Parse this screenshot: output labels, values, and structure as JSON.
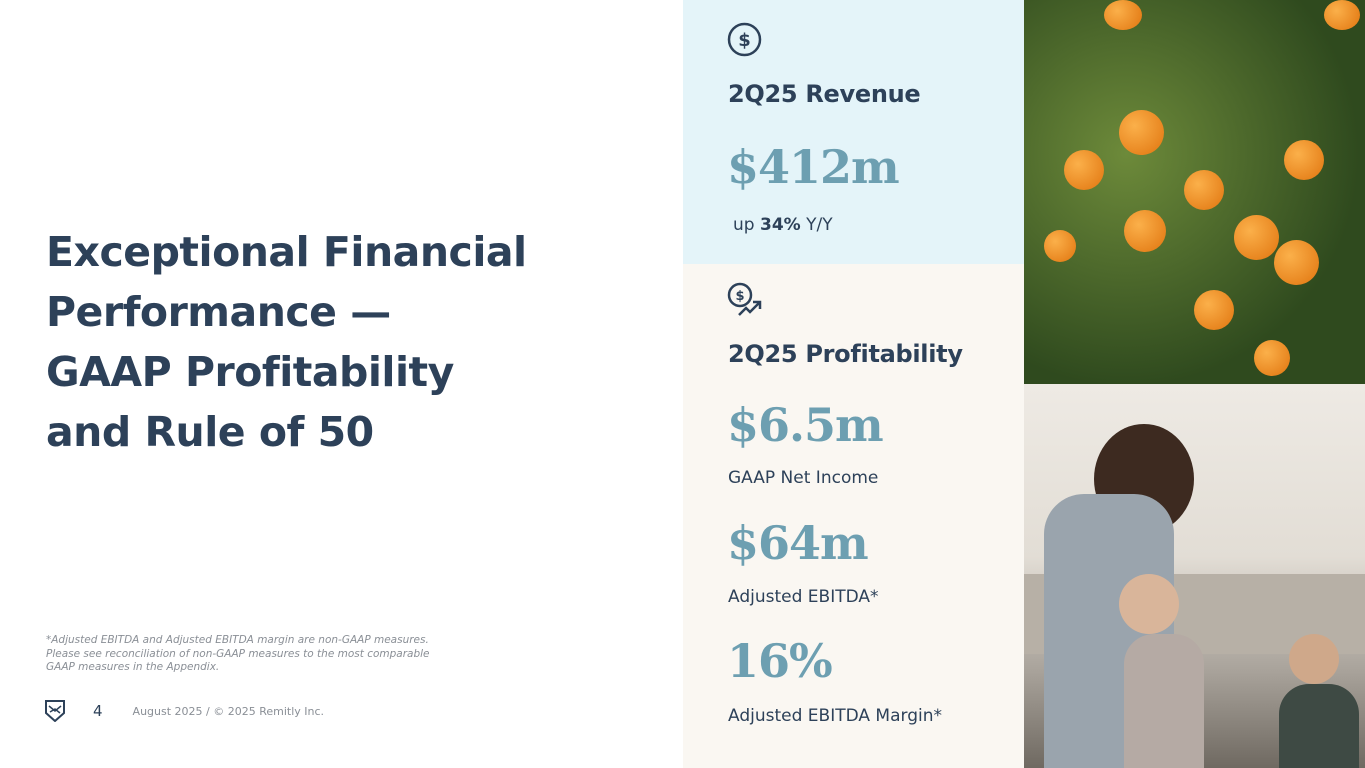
{
  "slide": {
    "title_lines": [
      "Exceptional Financial",
      "Performance —",
      "GAAP Profitability",
      "and Rule of 50"
    ],
    "footnote_lines": [
      "*Adjusted EBITDA and Adjusted EBITDA margin are non-GAAP measures.",
      "Please see reconciliation of non-GAAP measures to the most comparable",
      "GAAP measures in the Appendix."
    ],
    "page_number": "4",
    "footer_text": "August 2025 / © 2025 Remitly Inc."
  },
  "revenue": {
    "icon": "dollar-circle-icon",
    "heading": "2Q25 Revenue",
    "value": "$412m",
    "growth_prefix": "up",
    "growth_value": "34%",
    "growth_suffix": "Y/Y"
  },
  "profitability": {
    "icon": "dollar-growth-icon",
    "heading": "2Q25 Profitability",
    "metrics": [
      {
        "value": "$6.5m",
        "label": "GAAP Net Income"
      },
      {
        "value": "$64m",
        "label": "Adjusted EBITDA*"
      },
      {
        "value": "16%",
        "label": "Adjusted EBITDA Margin*"
      }
    ]
  },
  "colors": {
    "navy": "#2d4159",
    "accent": "#6d9fb1",
    "revenue_bg": "#e4f4f9",
    "profit_bg": "#faf7f2"
  }
}
